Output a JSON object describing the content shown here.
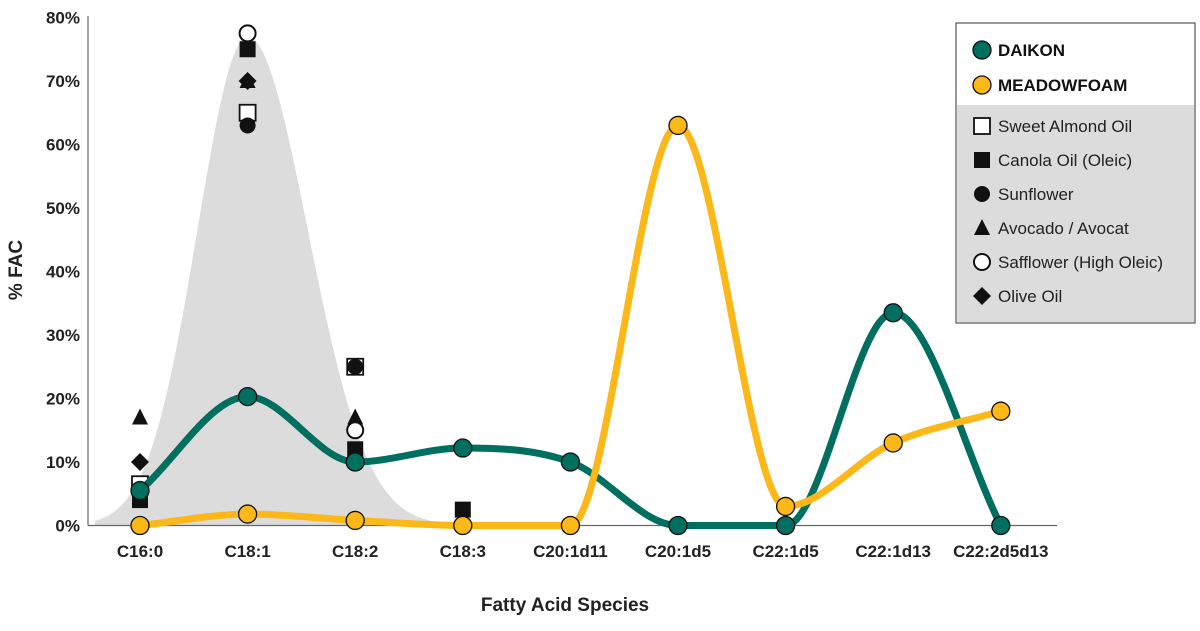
{
  "chart_data": {
    "type": "line",
    "title": "",
    "xlabel": "Fatty Acid Species",
    "ylabel": "% FAC",
    "ylim": [
      0,
      80
    ],
    "yticks": [
      "0%",
      "10%",
      "20%",
      "30%",
      "40%",
      "50%",
      "60%",
      "70%",
      "80%"
    ],
    "categories": [
      "C16:0",
      "C18:1",
      "C18:2",
      "C18:3",
      "C20:1d11",
      "C20:1d5",
      "C22:1d5",
      "C22:1d13",
      "C22:2d5d13"
    ],
    "grid": false,
    "legend_position": "top-right",
    "series": [
      {
        "name": "DAIKON",
        "color": "#006f5f",
        "marker": "filled-circle",
        "values": [
          5.5,
          20.3,
          10,
          12.2,
          10,
          0,
          0,
          33.5,
          0
        ]
      },
      {
        "name": "MEADOWFOAM",
        "color": "#fbb818",
        "marker": "filled-circle",
        "values": [
          0,
          1.8,
          0.8,
          0,
          0,
          63,
          3,
          13,
          18
        ]
      }
    ],
    "reference_oils": [
      {
        "name": "Sweet Almond Oil",
        "marker": "open-square",
        "points": {
          "C16:0": 6.5,
          "C18:1": 65,
          "C18:2": 25
        }
      },
      {
        "name": "Canola Oil (Oleic)",
        "marker": "filled-square",
        "points": {
          "C16:0": 4,
          "C18:1": 75,
          "C18:2": 12,
          "C18:3": 2.5
        }
      },
      {
        "name": "Sunflower",
        "marker": "filled-circle",
        "points": {
          "C16:0": 5.5,
          "C18:1": 63,
          "C18:2": 25,
          "C18:3": 0
        }
      },
      {
        "name": "Avocado / Avocat",
        "marker": "filled-triangle",
        "points": {
          "C16:0": 17,
          "C18:1": 70,
          "C18:2": 17
        }
      },
      {
        "name": "Safflower (High Oleic)",
        "marker": "open-circle",
        "points": {
          "C16:0": 5.5,
          "C18:1": 77.5,
          "C18:2": 15
        }
      },
      {
        "name": "Olive Oil",
        "marker": "filled-diamond",
        "points": {
          "C16:0": 10,
          "C18:1": 70,
          "C18:2": 10
        }
      }
    ],
    "background_band": {
      "color": "#dcdcdd",
      "peak_category": "C18:1",
      "peak_value": 77
    }
  }
}
